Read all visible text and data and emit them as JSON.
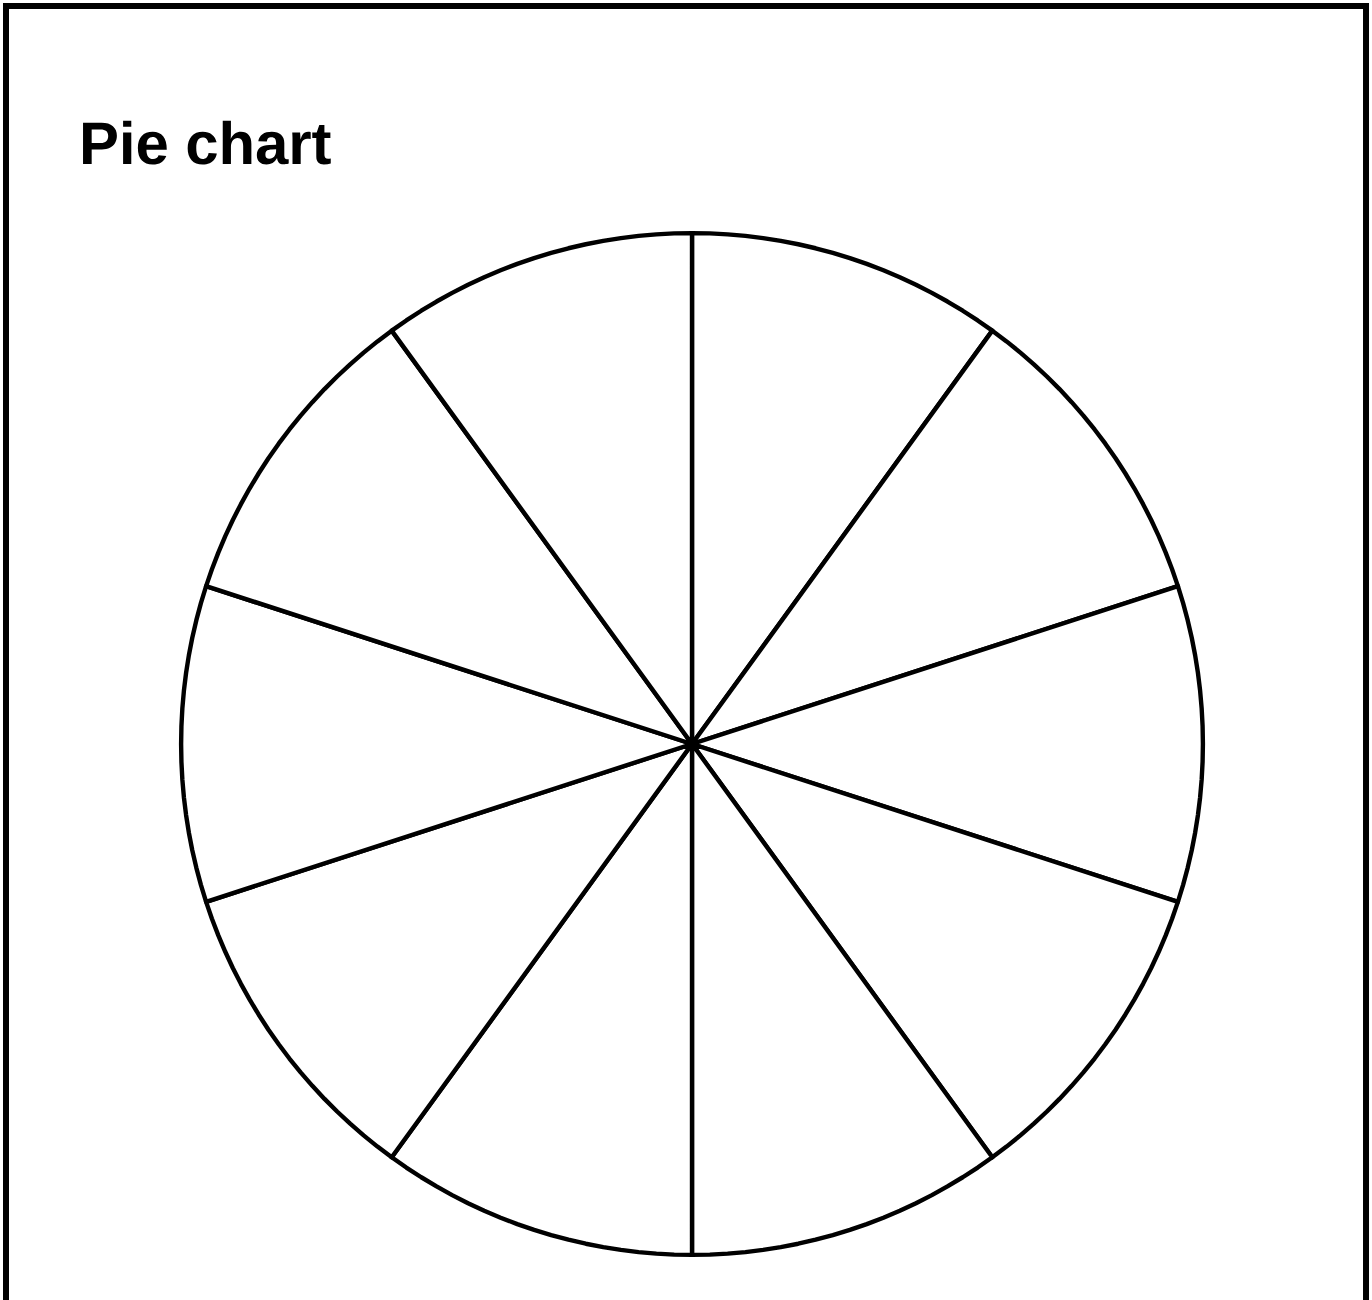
{
  "chart_data": {
    "type": "pie",
    "title": "Pie chart",
    "categories": [
      null,
      null,
      null,
      null,
      null,
      null,
      null,
      null,
      null,
      null
    ],
    "values": [
      10,
      10,
      10,
      10,
      10,
      10,
      10,
      10,
      10,
      10
    ],
    "colors": [
      "#ffffff",
      "#ffffff",
      "#ffffff",
      "#ffffff",
      "#ffffff",
      "#ffffff",
      "#ffffff",
      "#ffffff",
      "#ffffff",
      "#ffffff"
    ]
  }
}
